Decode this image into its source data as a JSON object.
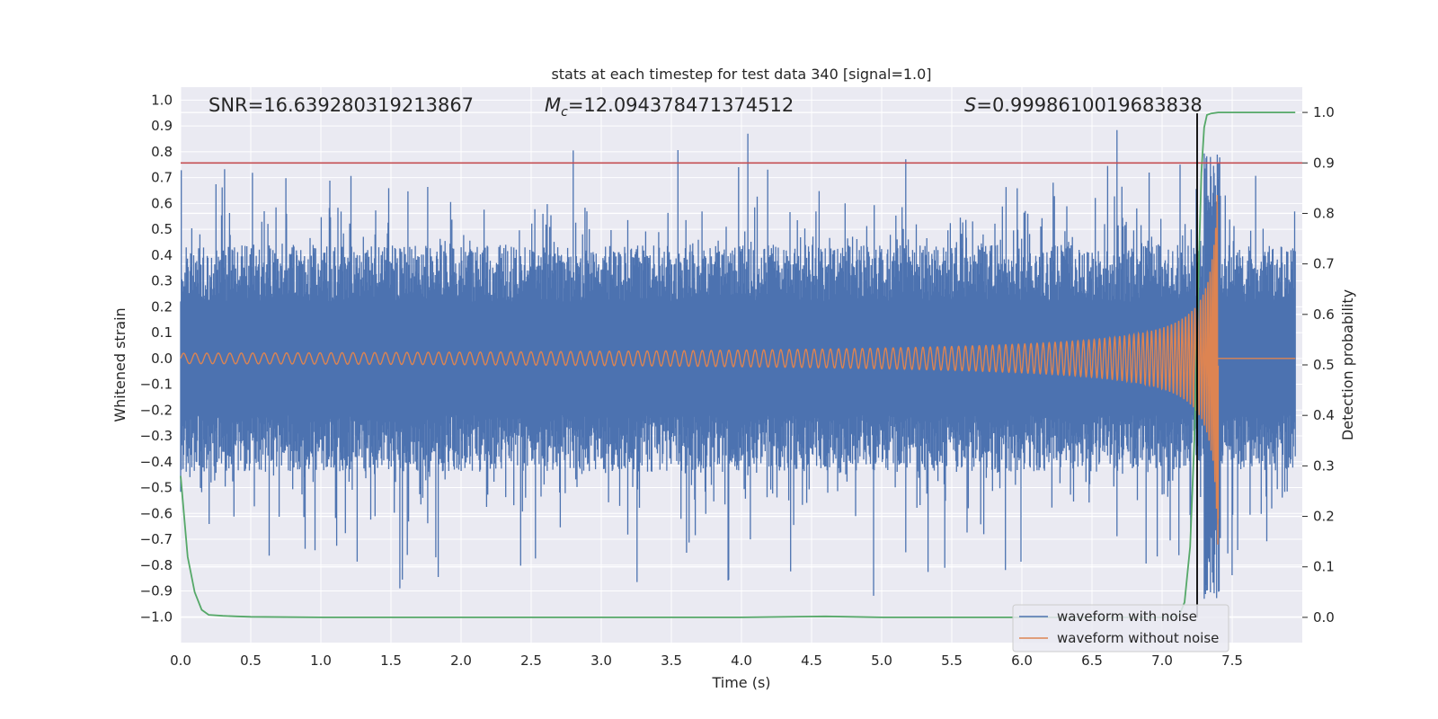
{
  "chart_data": {
    "type": "line",
    "title": "stats at each timestep for test data 340 [signal=1.0]",
    "xlabel": "Time (s)",
    "ylabel": "Whitened strain",
    "ylabel_right": "Detection probability",
    "xlim": [
      0.0,
      8.0
    ],
    "ylim": [
      -1.1,
      1.05
    ],
    "ylim_right": [
      -0.05,
      1.05
    ],
    "x_ticks": [
      "0.0",
      "0.5",
      "1.0",
      "1.5",
      "2.0",
      "2.5",
      "3.0",
      "3.5",
      "4.0",
      "4.5",
      "5.0",
      "5.5",
      "6.0",
      "6.5",
      "7.0",
      "7.5"
    ],
    "y_ticks": [
      "−1.0",
      "−0.9",
      "−0.8",
      "−0.7",
      "−0.6",
      "−0.5",
      "−0.4",
      "−0.3",
      "−0.2",
      "−0.1",
      "0.0",
      "0.1",
      "0.2",
      "0.3",
      "0.4",
      "0.5",
      "0.6",
      "0.7",
      "0.8",
      "0.9",
      "1.0"
    ],
    "y_ticks_right": [
      "0.0",
      "0.1",
      "0.2",
      "0.3",
      "0.4",
      "0.5",
      "0.6",
      "0.7",
      "0.8",
      "0.9",
      "1.0"
    ],
    "annotations": {
      "snr_label": "SNR",
      "snr_value": "=16.639280319213867",
      "mc_label": "M",
      "mc_sub": "c",
      "mc_value": "=12.094378471374512",
      "s_label": "S",
      "s_value": "=0.9998610019683838"
    },
    "threshold": {
      "axis": "right",
      "value": 0.9,
      "color": "#c44e52"
    },
    "merger_time": 7.25,
    "series": [
      {
        "name": "waveform with noise",
        "color": "#4c72b0",
        "axis": "left",
        "description": "whitened noisy strain, roughly symmetric around 0 with amplitude ±0.5 and spikes up to 0.95"
      },
      {
        "name": "waveform without noise",
        "color": "#dd8452",
        "axis": "left",
        "description": "chirp signal, amplitude ~0.02 rising to ~0.8 near t=7.4 s then cut off"
      },
      {
        "name": "detection probability",
        "color": "#55a868",
        "axis": "right",
        "x": [
          0.0,
          0.05,
          0.1,
          0.15,
          0.2,
          0.3,
          0.4,
          0.5,
          1.0,
          2.0,
          3.0,
          4.0,
          4.6,
          5.0,
          6.0,
          7.0,
          7.12,
          7.16,
          7.2,
          7.23,
          7.26,
          7.28,
          7.3,
          7.32,
          7.35,
          7.4,
          7.6,
          7.95
        ],
        "y": [
          0.28,
          0.12,
          0.05,
          0.015,
          0.005,
          0.003,
          0.002,
          0.001,
          0.0,
          0.0,
          0.0,
          0.0,
          0.002,
          0.0,
          0.0,
          0.0,
          0.002,
          0.03,
          0.14,
          0.35,
          0.68,
          0.88,
          0.97,
          0.995,
          0.998,
          1.0,
          1.0,
          1.0
        ]
      }
    ],
    "legend_position": "lower-right",
    "grid": true
  }
}
